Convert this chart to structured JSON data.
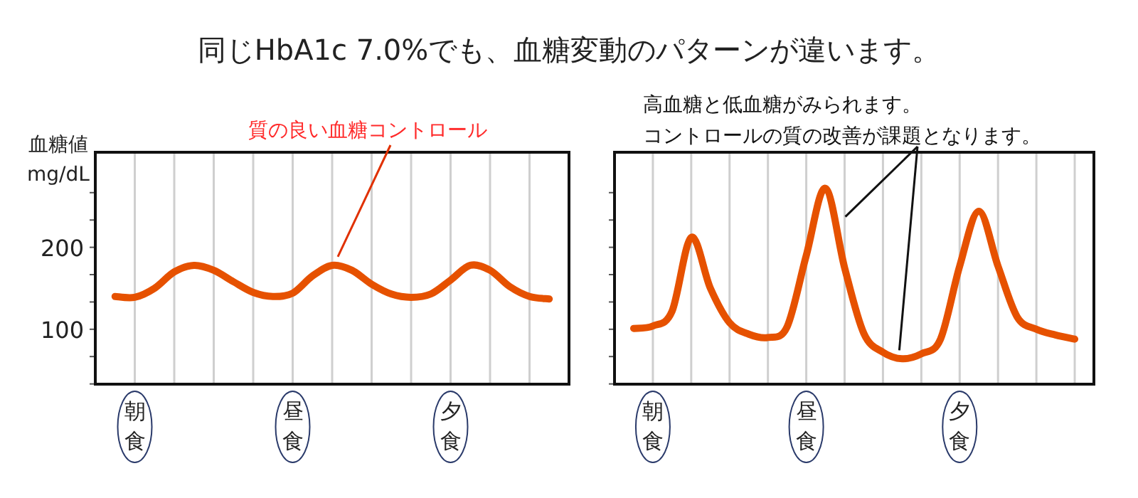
{
  "chart_data": [
    {
      "type": "line",
      "title": "同じHbA1c 7.0%でも、血糖変動のパターンが違います。",
      "ylabel": "血糖値\nmg/dL",
      "categories": [
        null,
        "朝食",
        null,
        null,
        null,
        null,
        null,
        null,
        null,
        "昼食",
        null,
        null,
        null,
        null,
        null,
        null,
        null,
        "夕食",
        null,
        null,
        null,
        null,
        null
      ],
      "ylim": [
        33,
        316
      ],
      "yticks": [
        {
          "value": 33.3,
          "label": null
        },
        {
          "value": 66.7,
          "label": null
        },
        100,
        {
          "value": 133.3,
          "label": null
        },
        {
          "value": 166.7,
          "label": null
        },
        200,
        {
          "value": 233.3,
          "label": null
        },
        {
          "value": 266.7,
          "label": null
        }
      ],
      "grid": "x",
      "series": [
        {
          "color": "#e65100",
          "values": [
            140,
            139,
            150,
            170,
            178,
            172,
            158,
            145,
            140,
            144,
            165,
            178,
            172,
            155,
            143,
            139,
            143,
            160,
            178,
            172,
            152,
            140,
            137
          ]
        }
      ],
      "annotations": [
        "質の良い血糖コントロール"
      ]
    },
    {
      "type": "line",
      "tick_labels": "x",
      "categories": [
        null,
        "朝食",
        null,
        null,
        null,
        null,
        null,
        null,
        null,
        "昼食",
        null,
        null,
        null,
        null,
        null,
        null,
        null,
        "夕食",
        null,
        null,
        null,
        null,
        null,
        null
      ],
      "ylim": [
        33,
        316
      ],
      "yticks": [
        {
          "value": 33.3,
          "label": null
        },
        {
          "value": 66.7,
          "label": null
        },
        {
          "value": 100,
          "label": null
        },
        {
          "value": 133.3,
          "label": null
        },
        {
          "value": 166.7,
          "label": null
        },
        {
          "value": 200,
          "label": null
        },
        {
          "value": 233.3,
          "label": null
        },
        {
          "value": 266.7,
          "label": null
        }
      ],
      "grid": "x",
      "series": [
        {
          "color": "#e65100",
          "values": [
            101,
            104,
            122,
            212,
            150,
            108,
            94,
            90,
            103,
            190,
            272,
            175,
            95,
            72,
            64,
            70,
            88,
            177,
            244,
            177,
            115,
            100,
            93,
            88
          ]
        }
      ],
      "annotations": [
        "高血糖と低血糖がみられます。",
        "コントロールの質の改善が課題となります。"
      ]
    }
  ]
}
